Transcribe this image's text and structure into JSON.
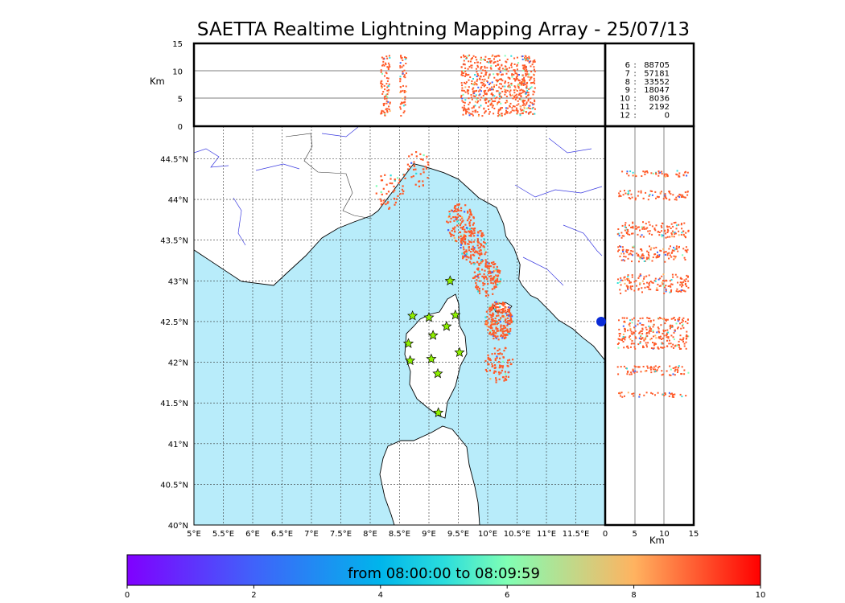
{
  "title": "SAETTA Realtime Lightning Mapping Array - 25/07/13",
  "chart_data": {
    "type": "scatter",
    "title": "SAETTA Realtime Lightning Mapping Array - 25/07/13",
    "map": {
      "lon_range": [
        5,
        12
      ],
      "lat_range": [
        40,
        44.9
      ],
      "x_ticks": [
        "5°E",
        "5.5°E",
        "6°E",
        "6.5°E",
        "7°E",
        "7.5°E",
        "8°E",
        "8.5°E",
        "9°E",
        "9.5°E",
        "10°E",
        "10.5°E",
        "11°E",
        "11.5°E"
      ],
      "y_ticks": [
        "40°N",
        "40.5°N",
        "41°N",
        "41.5°N",
        "42°N",
        "42.5°N",
        "43°N",
        "43.5°N",
        "44°N",
        "44.5°N"
      ],
      "grid": true,
      "coastline_points": [
        [
          8.74,
          44.44
        ],
        [
          8.9,
          44.41
        ],
        [
          9.25,
          44.33
        ],
        [
          9.5,
          44.25
        ],
        [
          9.7,
          44.12
        ],
        [
          9.85,
          44.02
        ],
        [
          10.0,
          43.96
        ],
        [
          10.15,
          43.9
        ],
        [
          10.27,
          43.7
        ],
        [
          10.31,
          43.55
        ],
        [
          10.45,
          43.4
        ],
        [
          10.55,
          43.2
        ],
        [
          10.53,
          43.02
        ],
        [
          10.58,
          42.95
        ],
        [
          10.73,
          42.82
        ],
        [
          10.85,
          42.78
        ],
        [
          11.07,
          42.62
        ],
        [
          11.2,
          42.52
        ],
        [
          11.45,
          42.41
        ],
        [
          11.62,
          42.3
        ],
        [
          11.8,
          42.2
        ],
        [
          12.0,
          42.02
        ]
      ],
      "stations": [
        {
          "lon": 9.36,
          "lat": 43.0
        },
        {
          "lon": 8.72,
          "lat": 42.57
        },
        {
          "lon": 9.0,
          "lat": 42.55
        },
        {
          "lon": 9.45,
          "lat": 42.58
        },
        {
          "lon": 9.3,
          "lat": 42.44
        },
        {
          "lon": 9.07,
          "lat": 42.33
        },
        {
          "lon": 8.65,
          "lat": 42.23
        },
        {
          "lon": 9.52,
          "lat": 42.12
        },
        {
          "lon": 8.68,
          "lat": 42.02
        },
        {
          "lon": 9.04,
          "lat": 42.04
        },
        {
          "lon": 9.15,
          "lat": 41.86
        },
        {
          "lon": 9.16,
          "lat": 41.38
        }
      ],
      "clusters": [
        {
          "lon": 9.52,
          "lat": 43.72,
          "n": 120,
          "color": "#ff5a28"
        },
        {
          "lon": 9.75,
          "lat": 43.42,
          "n": 130,
          "color": "#ff5a28"
        },
        {
          "lon": 9.97,
          "lat": 43.05,
          "n": 130,
          "color": "#ff5a28"
        },
        {
          "lon": 10.18,
          "lat": 42.52,
          "n": 220,
          "color": "#ff5a28"
        },
        {
          "lon": 10.18,
          "lat": 41.98,
          "n": 80,
          "color": "#ff5a28"
        },
        {
          "lon": 8.78,
          "lat": 44.38,
          "n": 40,
          "color": "#ff5a28"
        },
        {
          "lon": 8.32,
          "lat": 44.12,
          "n": 45,
          "color": "#ff5a28"
        }
      ]
    },
    "altitude_time": {
      "ylabel": "Km",
      "y_ticks": [
        0,
        5,
        10,
        15
      ],
      "ylim": [
        0,
        15
      ]
    },
    "altitude_lat": {
      "xlabel": "Km",
      "x_ticks": [
        0,
        5,
        10,
        15
      ],
      "xlim": [
        0,
        15
      ]
    },
    "counts": [
      {
        "label": "6",
        "value": "88705",
        "highlight": true
      },
      {
        "label": "7",
        "value": "57181",
        "highlight": false
      },
      {
        "label": "8",
        "value": "33552",
        "highlight": false
      },
      {
        "label": "9",
        "value": "18047",
        "highlight": false
      },
      {
        "label": "10",
        "value": "8036",
        "highlight": false
      },
      {
        "label": "11",
        "value": "2192",
        "highlight": false
      },
      {
        "label": "12",
        "value": "0",
        "highlight": false
      }
    ],
    "colorbar": {
      "label": "from 08:00:00 to 08:09:59",
      "range": [
        0,
        10
      ],
      "ticks": [
        0,
        2,
        4,
        6,
        8,
        10
      ]
    }
  }
}
